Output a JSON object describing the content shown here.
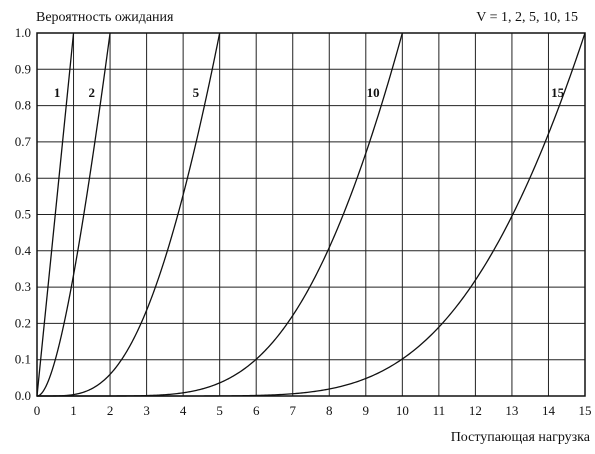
{
  "chart_data": {
    "type": "line",
    "title": "Вероятность ожидания",
    "annotation": "V = 1, 2, 5, 10, 15",
    "xlabel": "Поступающая нагрузка",
    "ylabel": "",
    "xlim": [
      0,
      15
    ],
    "ylim": [
      0,
      1.0
    ],
    "x_ticks": [
      "0",
      "1",
      "2",
      "3",
      "4",
      "5",
      "6",
      "7",
      "8",
      "9",
      "10",
      "11",
      "12",
      "13",
      "14",
      "15"
    ],
    "y_ticks": [
      "0.0",
      "0.1",
      "0.2",
      "0.3",
      "0.4",
      "0.5",
      "0.6",
      "0.7",
      "0.8",
      "0.9",
      "1.0"
    ],
    "grid": true,
    "series": [
      {
        "name": "1",
        "servers": 1
      },
      {
        "name": "2",
        "servers": 2
      },
      {
        "name": "5",
        "servers": 5
      },
      {
        "name": "10",
        "servers": 10
      },
      {
        "name": "15",
        "servers": 15
      }
    ]
  }
}
